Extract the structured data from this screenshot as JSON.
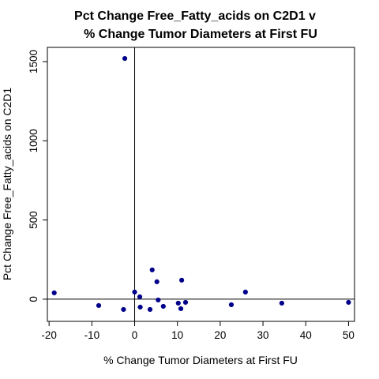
{
  "chart_data": {
    "type": "scatter",
    "title": "Pct Change Free_Fatty_acids on C2D1 v",
    "subtitle": "% Change Tumor Diameters at First FU",
    "xlabel": "% Change Tumor Diameters at First FU",
    "ylabel": "Pct Change Free_Fatty_acids on C2D1",
    "xlim": [
      -20.4,
      51.4
    ],
    "ylim": [
      -140,
      1590
    ],
    "xticks": [
      -20,
      -10,
      0,
      10,
      20,
      30,
      40,
      50
    ],
    "yticks": [
      0,
      500,
      1000,
      1500
    ],
    "reference_lines": {
      "x": 0,
      "y": 0
    },
    "grid": false,
    "point_color": "#00008b",
    "points": [
      {
        "x": -18.8,
        "y": 40
      },
      {
        "x": -8.4,
        "y": -40
      },
      {
        "x": -2.3,
        "y": 1520
      },
      {
        "x": -2.6,
        "y": -65
      },
      {
        "x": 0.0,
        "y": 45
      },
      {
        "x": 1.2,
        "y": 15
      },
      {
        "x": 1.3,
        "y": -50
      },
      {
        "x": 3.6,
        "y": -65
      },
      {
        "x": 4.1,
        "y": 185
      },
      {
        "x": 5.2,
        "y": 110
      },
      {
        "x": 5.5,
        "y": -5
      },
      {
        "x": 6.7,
        "y": -45
      },
      {
        "x": 10.2,
        "y": -25
      },
      {
        "x": 10.8,
        "y": -60
      },
      {
        "x": 11.0,
        "y": 120
      },
      {
        "x": 11.9,
        "y": -20
      },
      {
        "x": 22.6,
        "y": -35
      },
      {
        "x": 25.9,
        "y": 45
      },
      {
        "x": 34.4,
        "y": -25
      },
      {
        "x": 50.0,
        "y": -20
      }
    ]
  }
}
